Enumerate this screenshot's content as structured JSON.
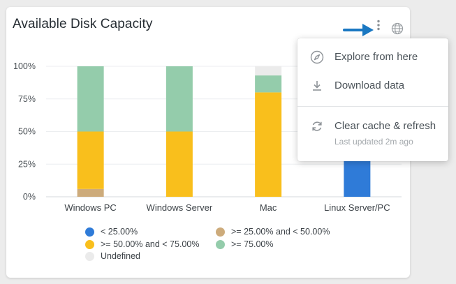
{
  "card": {
    "title": "Available Disk Capacity"
  },
  "menu": {
    "items": [
      {
        "label": "Explore from here",
        "icon": "compass-icon"
      },
      {
        "label": "Download data",
        "icon": "download-icon"
      },
      {
        "label": "Clear cache & refresh",
        "icon": "refresh-icon"
      }
    ],
    "last_updated": "Last updated 2m ago"
  },
  "colors": {
    "lt25": "#2f7bd8",
    "p25_50": "#cdab7b",
    "p50_75": "#f9bf1c",
    "gte75": "#94ccab",
    "undefined": "#ebebeb",
    "arrow": "#1a78c2"
  },
  "chart_data": {
    "type": "bar",
    "stacked": true,
    "title": "Available Disk Capacity",
    "categories": [
      "Windows PC",
      "Windows Server",
      "Mac",
      "Linux Server/PC"
    ],
    "y_ticks": [
      "100%",
      "75%",
      "50%",
      "25%",
      "0%"
    ],
    "ylim": [
      0,
      100
    ],
    "grid": true,
    "legend_position": "bottom",
    "series": [
      {
        "name": "< 25.00%",
        "color": "#2f7bd8",
        "values": [
          0,
          0,
          0,
          100
        ]
      },
      {
        "name": ">= 25.00% and < 50.00%",
        "color": "#cdab7b",
        "values": [
          6,
          0,
          0,
          0
        ]
      },
      {
        "name": ">= 50.00% and < 75.00%",
        "color": "#f9bf1c",
        "values": [
          44,
          50,
          80,
          0
        ]
      },
      {
        "name": ">= 75.00%",
        "color": "#94ccab",
        "values": [
          50,
          50,
          13,
          0
        ]
      },
      {
        "name": "Undefined",
        "color": "#ebebeb",
        "values": [
          0,
          0,
          7,
          0
        ]
      }
    ]
  }
}
